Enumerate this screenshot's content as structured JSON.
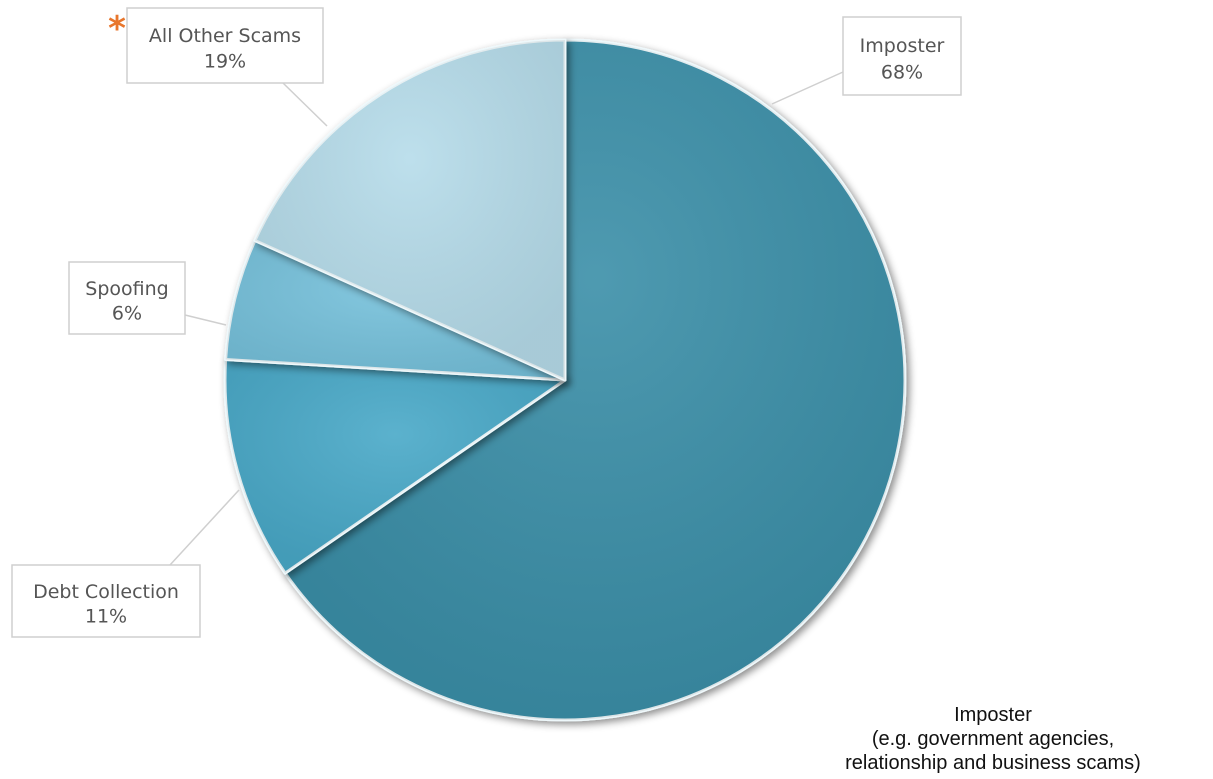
{
  "chart_data": {
    "type": "pie",
    "start_angle_deg": 0,
    "direction": "clockwise",
    "slices": [
      {
        "label": "Imposter",
        "value": 68,
        "value_label": "68%",
        "color": "#3b8fa8"
      },
      {
        "label": "Debt Collection",
        "value": 11,
        "value_label": "11%",
        "color": "#4aa9c8"
      },
      {
        "label": "Spoofing",
        "value": 6,
        "value_label": "6%",
        "color": "#77c2dc"
      },
      {
        "label": "All Other Scams",
        "value": 19,
        "value_label": "19%",
        "color": "#b6dcea",
        "marker": "*"
      }
    ]
  },
  "note_lines": [
    "Imposter",
    "(e.g. government agencies,",
    "relationship and business scams)"
  ],
  "colors": {
    "asterisk": "#e8762c",
    "callout_border": "#cfcfcf",
    "callout_text": "#555555"
  }
}
